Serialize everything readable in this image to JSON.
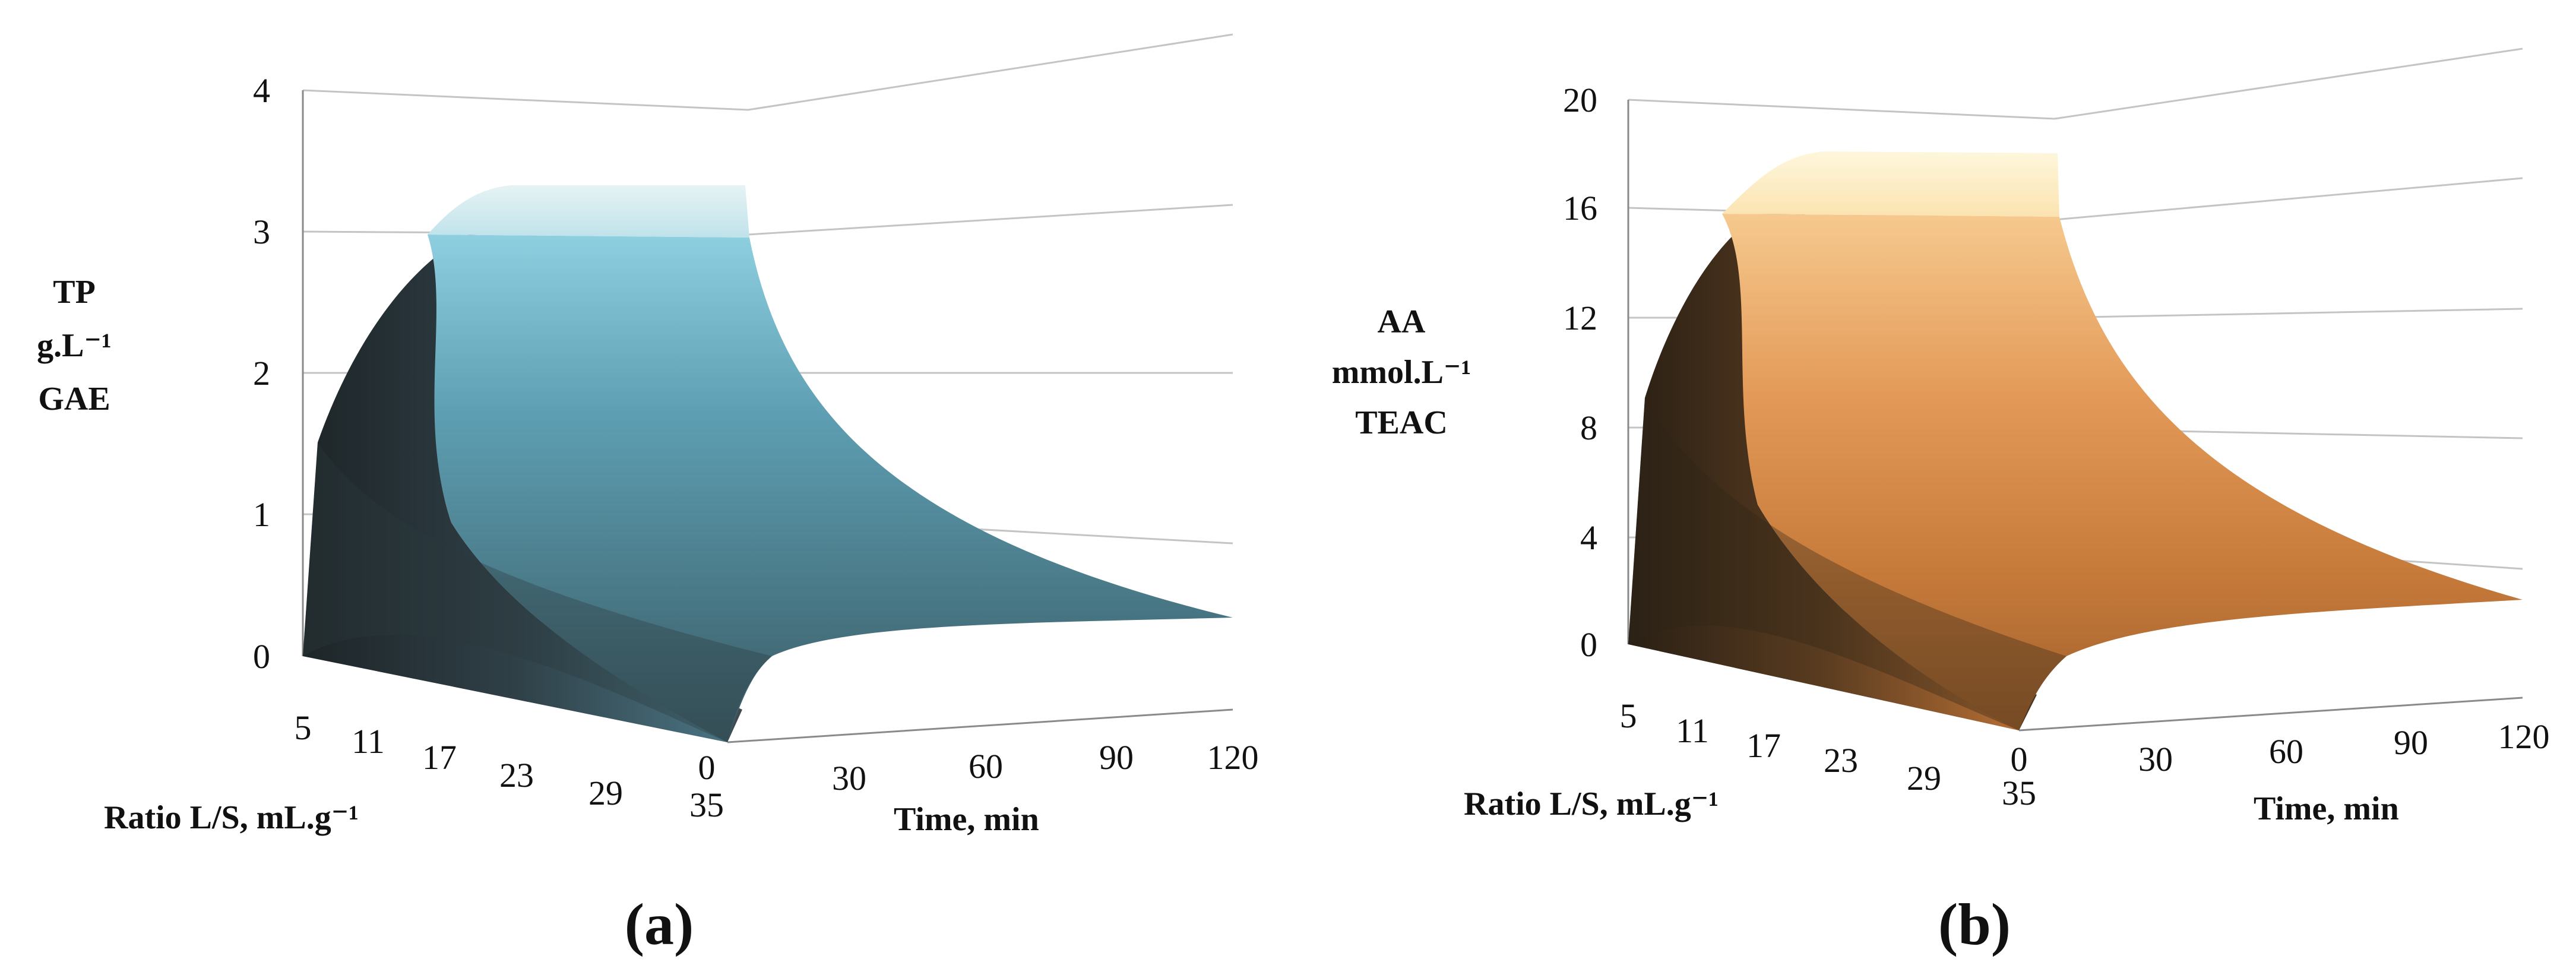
{
  "chart_data": [
    {
      "type": "surface",
      "panel_label": "(a)",
      "zlabel_lines": [
        "TP",
        "g.L⁻¹",
        "GAE"
      ],
      "xlabel": "Ratio L/S, mL.g⁻¹",
      "ylabel": "Time, min",
      "zlim": [
        0,
        4
      ],
      "z_ticks": [
        "4",
        "3",
        "2",
        "1",
        "0"
      ],
      "ratio_ticks": [
        "5",
        "11",
        "17",
        "23",
        "29",
        "35"
      ],
      "time_ticks": [
        "0",
        "30",
        "60",
        "90",
        "120"
      ],
      "surface": {
        "ratio_values": [
          5,
          11,
          17,
          23,
          29,
          35
        ],
        "time_values": [
          0,
          30,
          60,
          90,
          120
        ],
        "z_max": 3.3,
        "z_min_edge": 0.1,
        "colors": {
          "high": "#dff0f2",
          "mid": "#6fb8cf",
          "low": "#2a3337"
        }
      }
    },
    {
      "type": "surface",
      "panel_label": "(b)",
      "zlabel_lines": [
        "AA",
        "mmol.L⁻¹",
        "TEAC"
      ],
      "xlabel": "Ratio L/S, mL.g⁻¹",
      "ylabel": "Time, min",
      "zlim": [
        0,
        20
      ],
      "z_ticks": [
        "20",
        "16",
        "12",
        "8",
        "4",
        "0"
      ],
      "ratio_ticks": [
        "5",
        "11",
        "17",
        "23",
        "29",
        "35"
      ],
      "time_ticks": [
        "0",
        "30",
        "60",
        "90",
        "120"
      ],
      "surface": {
        "ratio_values": [
          5,
          11,
          17,
          23,
          29,
          35
        ],
        "time_values": [
          0,
          30,
          60,
          90,
          120
        ],
        "z_max": 18,
        "z_min_edge": 0.5,
        "colors": {
          "high": "#fdf3d2",
          "mid": "#e09050",
          "low": "#2e2418"
        }
      }
    }
  ]
}
